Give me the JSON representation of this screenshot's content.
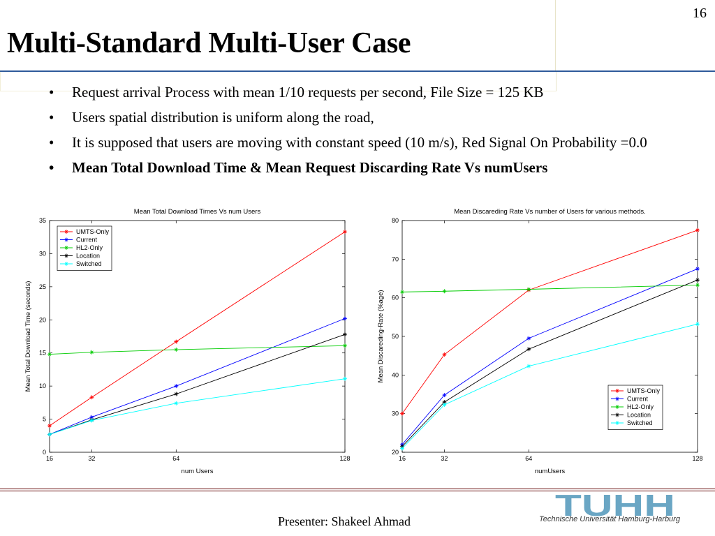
{
  "slide_number": "16",
  "title": "Multi-Standard Multi-User Case",
  "bullets": [
    "Request arrival Process with mean 1/10 requests per second, File Size = 125 KB",
    "Users spatial distribution is uniform along the road,",
    "It is supposed that users are moving with constant speed (10 m/s), Red Signal On Probability =0.0",
    "Mean Total Download Time & Mean Request Discarding Rate Vs numUsers"
  ],
  "footer": {
    "presenter": "Presenter: Shakeel Ahmad",
    "logo_text": "TUHH",
    "logo_subtitle": "Technische Universität Hamburg-Harburg"
  },
  "colors": {
    "title_rule": "#2e5a9a",
    "footer_rule": "#6b1111",
    "logo": "#6aa6c4"
  },
  "chart_data": [
    {
      "type": "line",
      "title": "Mean Total Download Times Vs num Users",
      "xlabel": "num Users",
      "ylabel": "Mean Total Download Time (seconds)",
      "x_ticks": [
        16,
        32,
        64,
        128
      ],
      "y_ticks": [
        0,
        5,
        10,
        15,
        20,
        25,
        30,
        35
      ],
      "xlim": [
        16,
        128
      ],
      "ylim": [
        0,
        35
      ],
      "legend_position": "top-left",
      "x": [
        16,
        32,
        64,
        128
      ],
      "series": [
        {
          "name": "UMTS-Only",
          "color": "#ff0000",
          "values": [
            4.0,
            8.3,
            16.7,
            33.3
          ]
        },
        {
          "name": "Current",
          "color": "#0000ff",
          "values": [
            2.7,
            5.3,
            10.0,
            20.2
          ]
        },
        {
          "name": "HL2-Only",
          "color": "#00cc00",
          "values": [
            14.8,
            15.1,
            15.5,
            16.1
          ]
        },
        {
          "name": "Location",
          "color": "#000000",
          "values": [
            2.7,
            4.9,
            8.8,
            17.8
          ]
        },
        {
          "name": "Switched",
          "color": "#00ffff",
          "values": [
            2.7,
            4.8,
            7.4,
            11.1
          ]
        }
      ]
    },
    {
      "type": "line",
      "title": "Mean Discareding Rate Vs number of Users for various methods.",
      "xlabel": "numUsers",
      "ylabel": "Mean Discareding-Rate (%age)",
      "x_ticks": [
        16,
        32,
        64,
        128
      ],
      "y_ticks": [
        20,
        30,
        40,
        50,
        60,
        70,
        80
      ],
      "xlim": [
        16,
        128
      ],
      "ylim": [
        20,
        80
      ],
      "legend_position": "bottom-right",
      "x": [
        16,
        32,
        64,
        128
      ],
      "series": [
        {
          "name": "UMTS-Only",
          "color": "#ff0000",
          "values": [
            30.0,
            45.3,
            62.0,
            77.5
          ]
        },
        {
          "name": "Current",
          "color": "#0000ff",
          "values": [
            22.0,
            34.8,
            49.5,
            67.5
          ]
        },
        {
          "name": "HL2-Only",
          "color": "#00cc00",
          "values": [
            61.5,
            61.7,
            62.2,
            63.3
          ]
        },
        {
          "name": "Location",
          "color": "#000000",
          "values": [
            21.5,
            33.0,
            46.7,
            64.6
          ]
        },
        {
          "name": "Switched",
          "color": "#00ffff",
          "values": [
            21.0,
            32.3,
            42.3,
            53.2
          ]
        }
      ]
    }
  ]
}
